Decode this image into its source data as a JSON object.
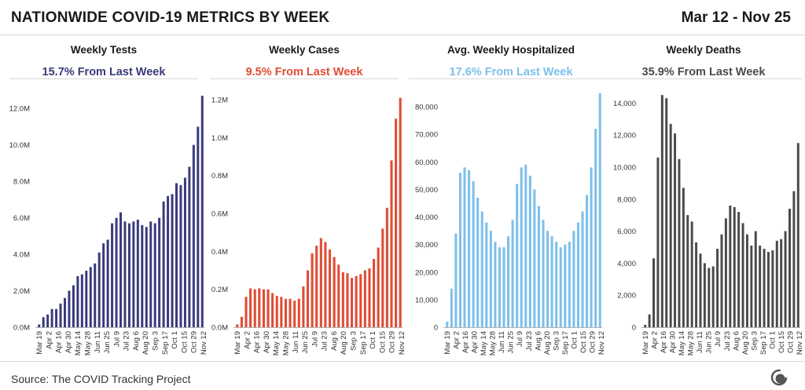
{
  "title": "NATIONWIDE COVID-19 METRICS BY WEEK",
  "date_range": "Mar 12 - Nov 25",
  "source": "Source: The COVID Tracking Project",
  "panels": [
    {
      "title": "Weekly Tests",
      "change": "15.7% From Last Week",
      "color": "#3a3a7d"
    },
    {
      "title": "Weekly Cases",
      "change": "9.5% From Last Week",
      "color": "#e04d36"
    },
    {
      "title": "Avg. Weekly Hospitalized",
      "change": "17.6% From Last Week",
      "color": "#7fbfea"
    },
    {
      "title": "Weekly Deaths",
      "change": "35.9% From Last Week",
      "color": "#4a4a4a"
    }
  ],
  "chart_data": [
    {
      "type": "bar",
      "title": "Weekly Tests",
      "subtitle": "15.7% From Last Week",
      "x_tick_labels": [
        "Mar 19",
        "Apr 2",
        "Apr 16",
        "Apr 30",
        "May 14",
        "May 28",
        "Jun 11",
        "Jun 25",
        "Jul 9",
        "Jul 23",
        "Aug 6",
        "Aug 20",
        "Sep 3",
        "Sep 17",
        "Oct 1",
        "Oct 15",
        "Oct 29",
        "Nov 12"
      ],
      "y_tick_labels": [
        "0.0M",
        "2.0M",
        "4.0M",
        "6.0M",
        "8.0M",
        "10.0M",
        "12.0M"
      ],
      "ylim": [
        0,
        13000000
      ],
      "yticks": [
        0,
        2000000,
        4000000,
        6000000,
        8000000,
        10000000,
        12000000
      ],
      "values": [
        150000,
        550000,
        700000,
        1000000,
        1000000,
        1300000,
        1600000,
        2000000,
        2300000,
        2800000,
        2900000,
        3100000,
        3300000,
        3500000,
        4100000,
        4600000,
        4800000,
        5700000,
        6000000,
        6300000,
        5800000,
        5700000,
        5800000,
        5900000,
        5600000,
        5500000,
        5800000,
        5700000,
        6000000,
        6900000,
        7200000,
        7300000,
        7900000,
        7800000,
        8200000,
        8800000,
        10000000,
        11000000,
        12700000
      ]
    },
    {
      "type": "bar",
      "title": "Weekly Cases",
      "subtitle": "9.5% From Last Week",
      "x_tick_labels": [
        "Mar 19",
        "Apr 2",
        "Apr 16",
        "Apr 30",
        "May 14",
        "May 28",
        "Jun 11",
        "Jun 25",
        "Jul 9",
        "Jul 23",
        "Aug 6",
        "Aug 20",
        "Sep 3",
        "Sep 17",
        "Oct 1",
        "Oct 15",
        "Oct 29",
        "Nov 12"
      ],
      "y_tick_labels": [
        "0.0M",
        "0.2M",
        "0.4M",
        "0.6M",
        "0.8M",
        "1.0M",
        "1.2M"
      ],
      "ylim": [
        0,
        1250000
      ],
      "yticks": [
        0,
        200000,
        400000,
        600000,
        800000,
        1000000,
        1200000
      ],
      "values": [
        15000,
        55000,
        160000,
        205000,
        200000,
        205000,
        200000,
        200000,
        180000,
        165000,
        160000,
        150000,
        150000,
        140000,
        150000,
        215000,
        300000,
        390000,
        430000,
        470000,
        450000,
        410000,
        370000,
        330000,
        290000,
        285000,
        260000,
        270000,
        280000,
        300000,
        310000,
        360000,
        420000,
        520000,
        630000,
        880000,
        1100000,
        1210000
      ]
    },
    {
      "type": "bar",
      "title": "Avg. Weekly Hospitalized",
      "subtitle": "17.6% From Last Week",
      "x_tick_labels": [
        "Mar 19",
        "Apr 2",
        "Apr 16",
        "Apr 30",
        "May 14",
        "May 28",
        "Jun 11",
        "Jun 25",
        "Jul 9",
        "Jul 23",
        "Aug 6",
        "Aug 20",
        "Sep 3",
        "Sep 17",
        "Oct 1",
        "Oct 15",
        "Oct 29",
        "Nov 12"
      ],
      "y_tick_labels": [
        "0",
        "10,000",
        "20,000",
        "30,000",
        "40,000",
        "50,000",
        "60,000",
        "70,000",
        "80,000"
      ],
      "ylim": [
        0,
        86000
      ],
      "yticks": [
        0,
        10000,
        20000,
        30000,
        40000,
        50000,
        60000,
        70000,
        80000
      ],
      "values": [
        2000,
        14000,
        34000,
        56000,
        58000,
        57000,
        53000,
        47000,
        42000,
        38000,
        35000,
        31000,
        29000,
        29000,
        33000,
        39000,
        52000,
        58000,
        59000,
        55000,
        50000,
        44000,
        39000,
        35000,
        33000,
        31000,
        29000,
        30000,
        31000,
        35000,
        38000,
        42000,
        48000,
        58000,
        72000,
        85000
      ]
    },
    {
      "type": "bar",
      "title": "Weekly Deaths",
      "subtitle": "35.9% From Last Week",
      "x_tick_labels": [
        "Mar 19",
        "Apr 2",
        "Apr 16",
        "Apr 30",
        "May 14",
        "May 28",
        "Jun 11",
        "Jun 25",
        "Jul 9",
        "Jul 23",
        "Aug 6",
        "Aug 20",
        "Sep 3",
        "Sep 17",
        "Oct 1",
        "Oct 15",
        "Oct 29",
        "Nov 12"
      ],
      "y_tick_labels": [
        "0",
        "2,000",
        "4,000",
        "6,000",
        "8,000",
        "10,000",
        "12,000",
        "14,000"
      ],
      "ylim": [
        0,
        14800
      ],
      "yticks": [
        0,
        2000,
        4000,
        6000,
        8000,
        10000,
        12000,
        14000
      ],
      "values": [
        150,
        800,
        4300,
        10600,
        14500,
        14300,
        12700,
        12100,
        10500,
        8700,
        7000,
        6600,
        5300,
        4600,
        4000,
        3700,
        3800,
        4900,
        5800,
        6800,
        7600,
        7500,
        7200,
        6500,
        5800,
        5100,
        6000,
        5100,
        4900,
        4700,
        4800,
        5400,
        5500,
        6000,
        7400,
        8500,
        11500
      ]
    }
  ]
}
